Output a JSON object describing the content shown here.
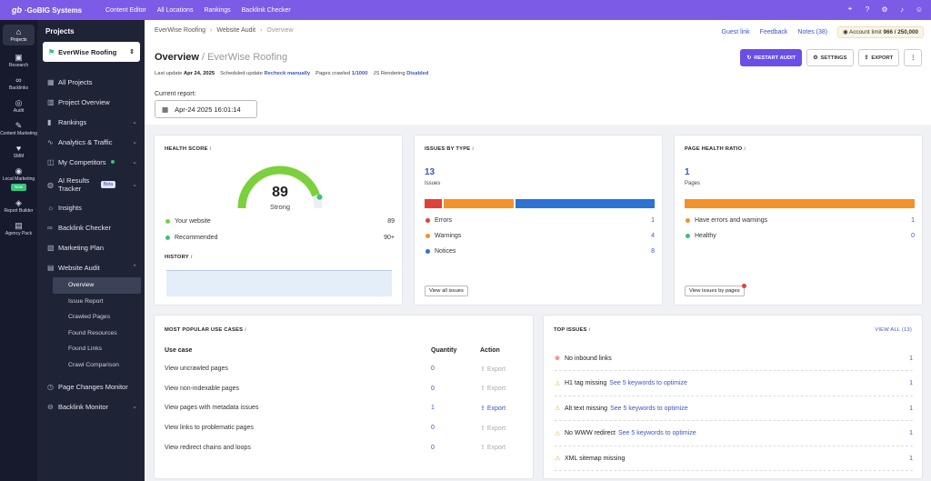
{
  "topbar": {
    "logo_mark": "gb",
    "logo_text": "·GoBIG Systems",
    "nav": [
      "Content Editor",
      "All Locations",
      "Rankings",
      "Backlink Checker"
    ],
    "icons": [
      "location-icon",
      "help-icon",
      "settings-icon",
      "bell-icon",
      "avatar-icon"
    ]
  },
  "rail": [
    {
      "label": "Projects",
      "glyph": "⌂"
    },
    {
      "label": "Research",
      "glyph": "▣"
    },
    {
      "label": "Backlinks",
      "glyph": "∞"
    },
    {
      "label": "Audit",
      "glyph": "◎"
    },
    {
      "label": "Content Marketing",
      "glyph": "✎"
    },
    {
      "label": "SMM",
      "glyph": "♥"
    },
    {
      "label": "Local Marketing",
      "glyph": "◉",
      "badge": "New"
    },
    {
      "label": "Report Builder",
      "glyph": "◈"
    },
    {
      "label": "Agency Pack",
      "glyph": "▤"
    }
  ],
  "sidebar": {
    "title": "Projects",
    "project": "EverWise Roofing",
    "items": [
      {
        "label": "All Projects",
        "glyph": "▦"
      },
      {
        "label": "Project Overview",
        "glyph": "▥"
      },
      {
        "label": "Rankings",
        "glyph": "▮",
        "suffix": "⌄"
      },
      {
        "label": "Analytics & Traffic",
        "glyph": "∿",
        "suffix": "⌄"
      },
      {
        "label": "My Competitors",
        "glyph": "◫",
        "suffix": "⌄",
        "dot": true
      },
      {
        "label": "AI Results Tracker",
        "glyph": "◍",
        "suffix": "⌄",
        "beta": "Beta"
      },
      {
        "label": "Insights",
        "glyph": "☼"
      },
      {
        "label": "Backlink Checker",
        "glyph": "∞"
      },
      {
        "label": "Marketing Plan",
        "glyph": "▧"
      },
      {
        "label": "Website Audit",
        "glyph": "▤",
        "suffix": "⌃"
      }
    ],
    "subitems": [
      "Overview",
      "Issue Report",
      "Crawled Pages",
      "Found Resources",
      "Found Links",
      "Crawl Comparison"
    ],
    "after": [
      {
        "label": "Page Changes Monitor",
        "glyph": "◷"
      },
      {
        "label": "Backlink Monitor",
        "glyph": "⊖",
        "suffix": "⌄"
      }
    ]
  },
  "breadcrumb": [
    "EverWise Roofing",
    "Website Audit",
    "Overview"
  ],
  "toplinks": {
    "guest": "Guest link",
    "feedback": "Feedback",
    "notes": "Notes (38)",
    "account": "Account limit",
    "limit": "966 / 250,000"
  },
  "page": {
    "title": "Overview",
    "title_suffix": "/ EverWise Roofing",
    "meta": {
      "last_update_label": "Last update",
      "last_update": "Apr 24, 2025",
      "scheduled_label": "Scheduled update",
      "scheduled": "Recheck manually",
      "crawled_label": "Pages crawled",
      "crawled": "1/1000",
      "js_label": "JS Rendering",
      "js": "Disabled"
    },
    "buttons": {
      "restart": "RESTART AUDIT",
      "settings": "SETTINGS",
      "export": "EXPORT",
      "more": "⋮"
    },
    "current_report_label": "Current report:",
    "current_report": "Apr-24 2025 16:01:14"
  },
  "health": {
    "title": "HEALTH SCORE",
    "score": 89,
    "score_fraction": 0.89,
    "verdict": "Strong",
    "legend": [
      {
        "label": "Your website",
        "value": "89",
        "color": "#7bd03c"
      },
      {
        "label": "Recommended",
        "value": "90+",
        "color": "#35c57a"
      }
    ],
    "history_title": "HISTORY"
  },
  "issues": {
    "title": "ISSUES BY TYPE",
    "total": "13",
    "total_label": "Issues",
    "segments": [
      {
        "label": "Errors",
        "value": "1",
        "color": "#e0403a"
      },
      {
        "label": "Warnings",
        "value": "4",
        "color": "#f2922a"
      },
      {
        "label": "Notices",
        "value": "8",
        "color": "#2a73d4"
      }
    ],
    "button": "View all issues"
  },
  "ratio": {
    "title": "PAGE HEALTH RATIO",
    "total": "1",
    "total_label": "Pages",
    "legend": [
      {
        "label": "Have errors and warnings",
        "value": "1",
        "color": "#f2922a"
      },
      {
        "label": "Healthy",
        "value": "0",
        "color": "#35c57a"
      }
    ],
    "button": "View issues by pages"
  },
  "usecases": {
    "title": "MOST POPULAR USE CASES",
    "headers": [
      "Use case",
      "Quantity",
      "Action"
    ],
    "rows": [
      {
        "label": "View uncrawled pages",
        "qty": "0",
        "action": "Export"
      },
      {
        "label": "View non-indexable pages",
        "qty": "0",
        "action": "Export"
      },
      {
        "label": "View pages with metadata issues",
        "qty": "1",
        "action": "Export"
      },
      {
        "label": "View links to problematic pages",
        "qty": "0",
        "action": "Export"
      },
      {
        "label": "View redirect chains and loops",
        "qty": "0",
        "action": "Export"
      }
    ]
  },
  "topissues": {
    "title": "TOP ISSUES",
    "view_all": "VIEW ALL (13)",
    "rows": [
      {
        "label": "No inbound links",
        "kw": "",
        "count": "1",
        "type": "error"
      },
      {
        "label": "H1 tag missing",
        "kw": "See 5 keywords to optimize",
        "count": "1",
        "type": "warning"
      },
      {
        "label": "Alt text missing",
        "kw": "See 5 keywords to optimize",
        "count": "1",
        "type": "warning"
      },
      {
        "label": "No WWW redirect",
        "kw": "See 5 keywords to optimize",
        "count": "1",
        "type": "warning"
      },
      {
        "label": "XML sitemap missing",
        "kw": "",
        "count": "1",
        "type": "warning"
      }
    ]
  }
}
